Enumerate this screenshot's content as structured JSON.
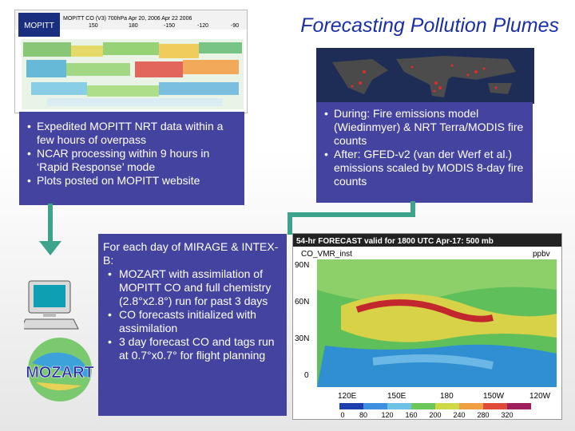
{
  "title": "Forecasting Pollution Plumes",
  "mopitt_image": {
    "header": "MOPITT CO (V3) 700hPa Apr 20, 2006 Apr 22 2006",
    "logo_text": "MOPITT",
    "lon_ticks": [
      "150",
      "180",
      "-150",
      "-120",
      "-90"
    ]
  },
  "panel_mopitt": {
    "bullets": [
      "Expedited MOPITT NRT data within a few hours of overpass",
      "NCAR processing within 9 hours in ‘Rapid Response’ mode",
      "Plots posted on MOPITT website"
    ]
  },
  "panel_fire": {
    "bullets": [
      "During: Fire emissions model (Wiedinmyer) & NRT Terra/MODIS fire counts",
      "After: GFED-v2 (van der Werf et al.) emissions scaled by MODIS 8-day fire counts"
    ]
  },
  "panel_mozart": {
    "intro": "For each day of MIRAGE & INTEX-B:",
    "bullets": [
      "MOZART with assimilation of MOPITT CO and full chemistry (2.8°x2.8°) run for past 3 days",
      "CO forecasts initialized with assimilation",
      "3 day forecast CO and tags run at 0.7°x0.7° for flight planning"
    ]
  },
  "mozart_logo_text": "MOZART",
  "forecast_image": {
    "header": "54-hr FORECAST valid for 1800 UTC Apr-17: 500 mb",
    "variable": "CO_VMR_inst",
    "unit": "ppbv",
    "lat_labels": [
      "90N",
      "60N",
      "30N",
      "0"
    ],
    "lon_labels": [
      "120E",
      "150E",
      "180",
      "150W",
      "120W"
    ],
    "colorbar_labels": [
      "0",
      "80",
      "120",
      "160",
      "200",
      "240",
      "280",
      "320"
    ]
  }
}
